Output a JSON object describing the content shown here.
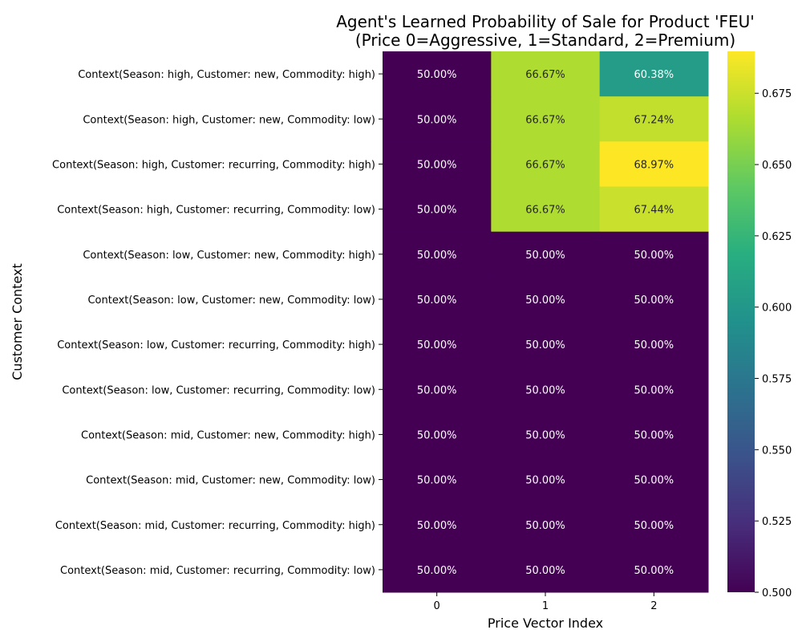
{
  "chart_data": {
    "type": "heatmap",
    "title": "Agent's Learned Probability of Sale for Product 'FEU'",
    "subtitle": "(Price 0=Aggressive, 1=Standard, 2=Premium)",
    "xlabel": "Price Vector Index",
    "ylabel": "Customer Context",
    "x_categories": [
      "0",
      "1",
      "2"
    ],
    "y_categories": [
      "Context(Season: high, Customer: new, Commodity: high)",
      "Context(Season: high, Customer: new, Commodity: low)",
      "Context(Season: high, Customer: recurring, Commodity: high)",
      "Context(Season: high, Customer: recurring, Commodity: low)",
      "Context(Season: low, Customer: new, Commodity: high)",
      "Context(Season: low, Customer: new, Commodity: low)",
      "Context(Season: low, Customer: recurring, Commodity: high)",
      "Context(Season: low, Customer: recurring, Commodity: low)",
      "Context(Season: mid, Customer: new, Commodity: high)",
      "Context(Season: mid, Customer: new, Commodity: low)",
      "Context(Season: mid, Customer: recurring, Commodity: high)",
      "Context(Season: mid, Customer: recurring, Commodity: low)"
    ],
    "values": [
      [
        0.5,
        0.6667,
        0.6038
      ],
      [
        0.5,
        0.6667,
        0.6724
      ],
      [
        0.5,
        0.6667,
        0.6897
      ],
      [
        0.5,
        0.6667,
        0.6744
      ],
      [
        0.5,
        0.5,
        0.5
      ],
      [
        0.5,
        0.5,
        0.5
      ],
      [
        0.5,
        0.5,
        0.5
      ],
      [
        0.5,
        0.5,
        0.5
      ],
      [
        0.5,
        0.5,
        0.5
      ],
      [
        0.5,
        0.5,
        0.5
      ],
      [
        0.5,
        0.5,
        0.5
      ],
      [
        0.5,
        0.5,
        0.5
      ]
    ],
    "cell_labels": [
      [
        "50.00%",
        "66.67%",
        "60.38%"
      ],
      [
        "50.00%",
        "66.67%",
        "67.24%"
      ],
      [
        "50.00%",
        "66.67%",
        "68.97%"
      ],
      [
        "50.00%",
        "66.67%",
        "67.44%"
      ],
      [
        "50.00%",
        "50.00%",
        "50.00%"
      ],
      [
        "50.00%",
        "50.00%",
        "50.00%"
      ],
      [
        "50.00%",
        "50.00%",
        "50.00%"
      ],
      [
        "50.00%",
        "50.00%",
        "50.00%"
      ],
      [
        "50.00%",
        "50.00%",
        "50.00%"
      ],
      [
        "50.00%",
        "50.00%",
        "50.00%"
      ],
      [
        "50.00%",
        "50.00%",
        "50.00%"
      ],
      [
        "50.00%",
        "50.00%",
        "50.00%"
      ]
    ],
    "colormap": "viridis",
    "vmin": 0.5,
    "vmax": 0.6897,
    "colorbar_ticks": [
      0.5,
      0.525,
      0.55,
      0.575,
      0.6,
      0.625,
      0.65,
      0.675
    ],
    "colorbar_tick_labels": [
      "0.500",
      "0.525",
      "0.550",
      "0.575",
      "0.600",
      "0.625",
      "0.650",
      "0.675"
    ],
    "grid": false,
    "legend": "colorbar-right"
  }
}
